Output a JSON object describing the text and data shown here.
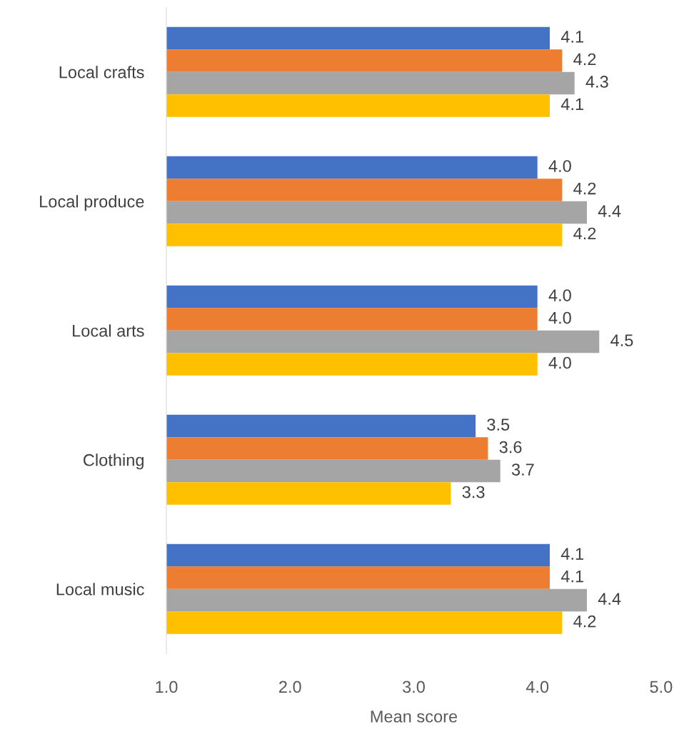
{
  "chart_data": {
    "type": "bar",
    "orientation": "horizontal",
    "xlabel": "Mean score",
    "categories": [
      "Local crafts",
      "Local produce",
      "Local arts",
      "Clothing",
      "Local music"
    ],
    "series": [
      {
        "color": "#4472c4",
        "values": [
          4.1,
          4.0,
          4.0,
          3.5,
          4.1
        ],
        "value_labels": [
          "4.1",
          "4.0",
          "4.0",
          "3.5",
          "4.1"
        ]
      },
      {
        "color": "#ed7d31",
        "values": [
          4.2,
          4.2,
          4.0,
          3.6,
          4.1
        ],
        "value_labels": [
          "4.2",
          "4.2",
          "4.0",
          "3.6",
          "4.1"
        ]
      },
      {
        "color": "#a5a5a5",
        "values": [
          4.3,
          4.4,
          4.5,
          3.7,
          4.4
        ],
        "value_labels": [
          "4.3",
          "4.4",
          "4.5",
          "3.7",
          "4.4"
        ]
      },
      {
        "color": "#ffc000",
        "values": [
          4.1,
          4.2,
          4.0,
          3.3,
          4.2
        ],
        "value_labels": [
          "4.1",
          "4.2",
          "4.0",
          "3.3",
          "4.2"
        ]
      }
    ],
    "xlim": [
      1,
      5
    ],
    "xticks": [
      {
        "value": 1,
        "label": "1.0"
      },
      {
        "value": 2,
        "label": "2.0"
      },
      {
        "value": 3,
        "label": "3.0"
      },
      {
        "value": 4,
        "label": "4.0"
      },
      {
        "value": 5,
        "label": "5.0"
      }
    ]
  }
}
